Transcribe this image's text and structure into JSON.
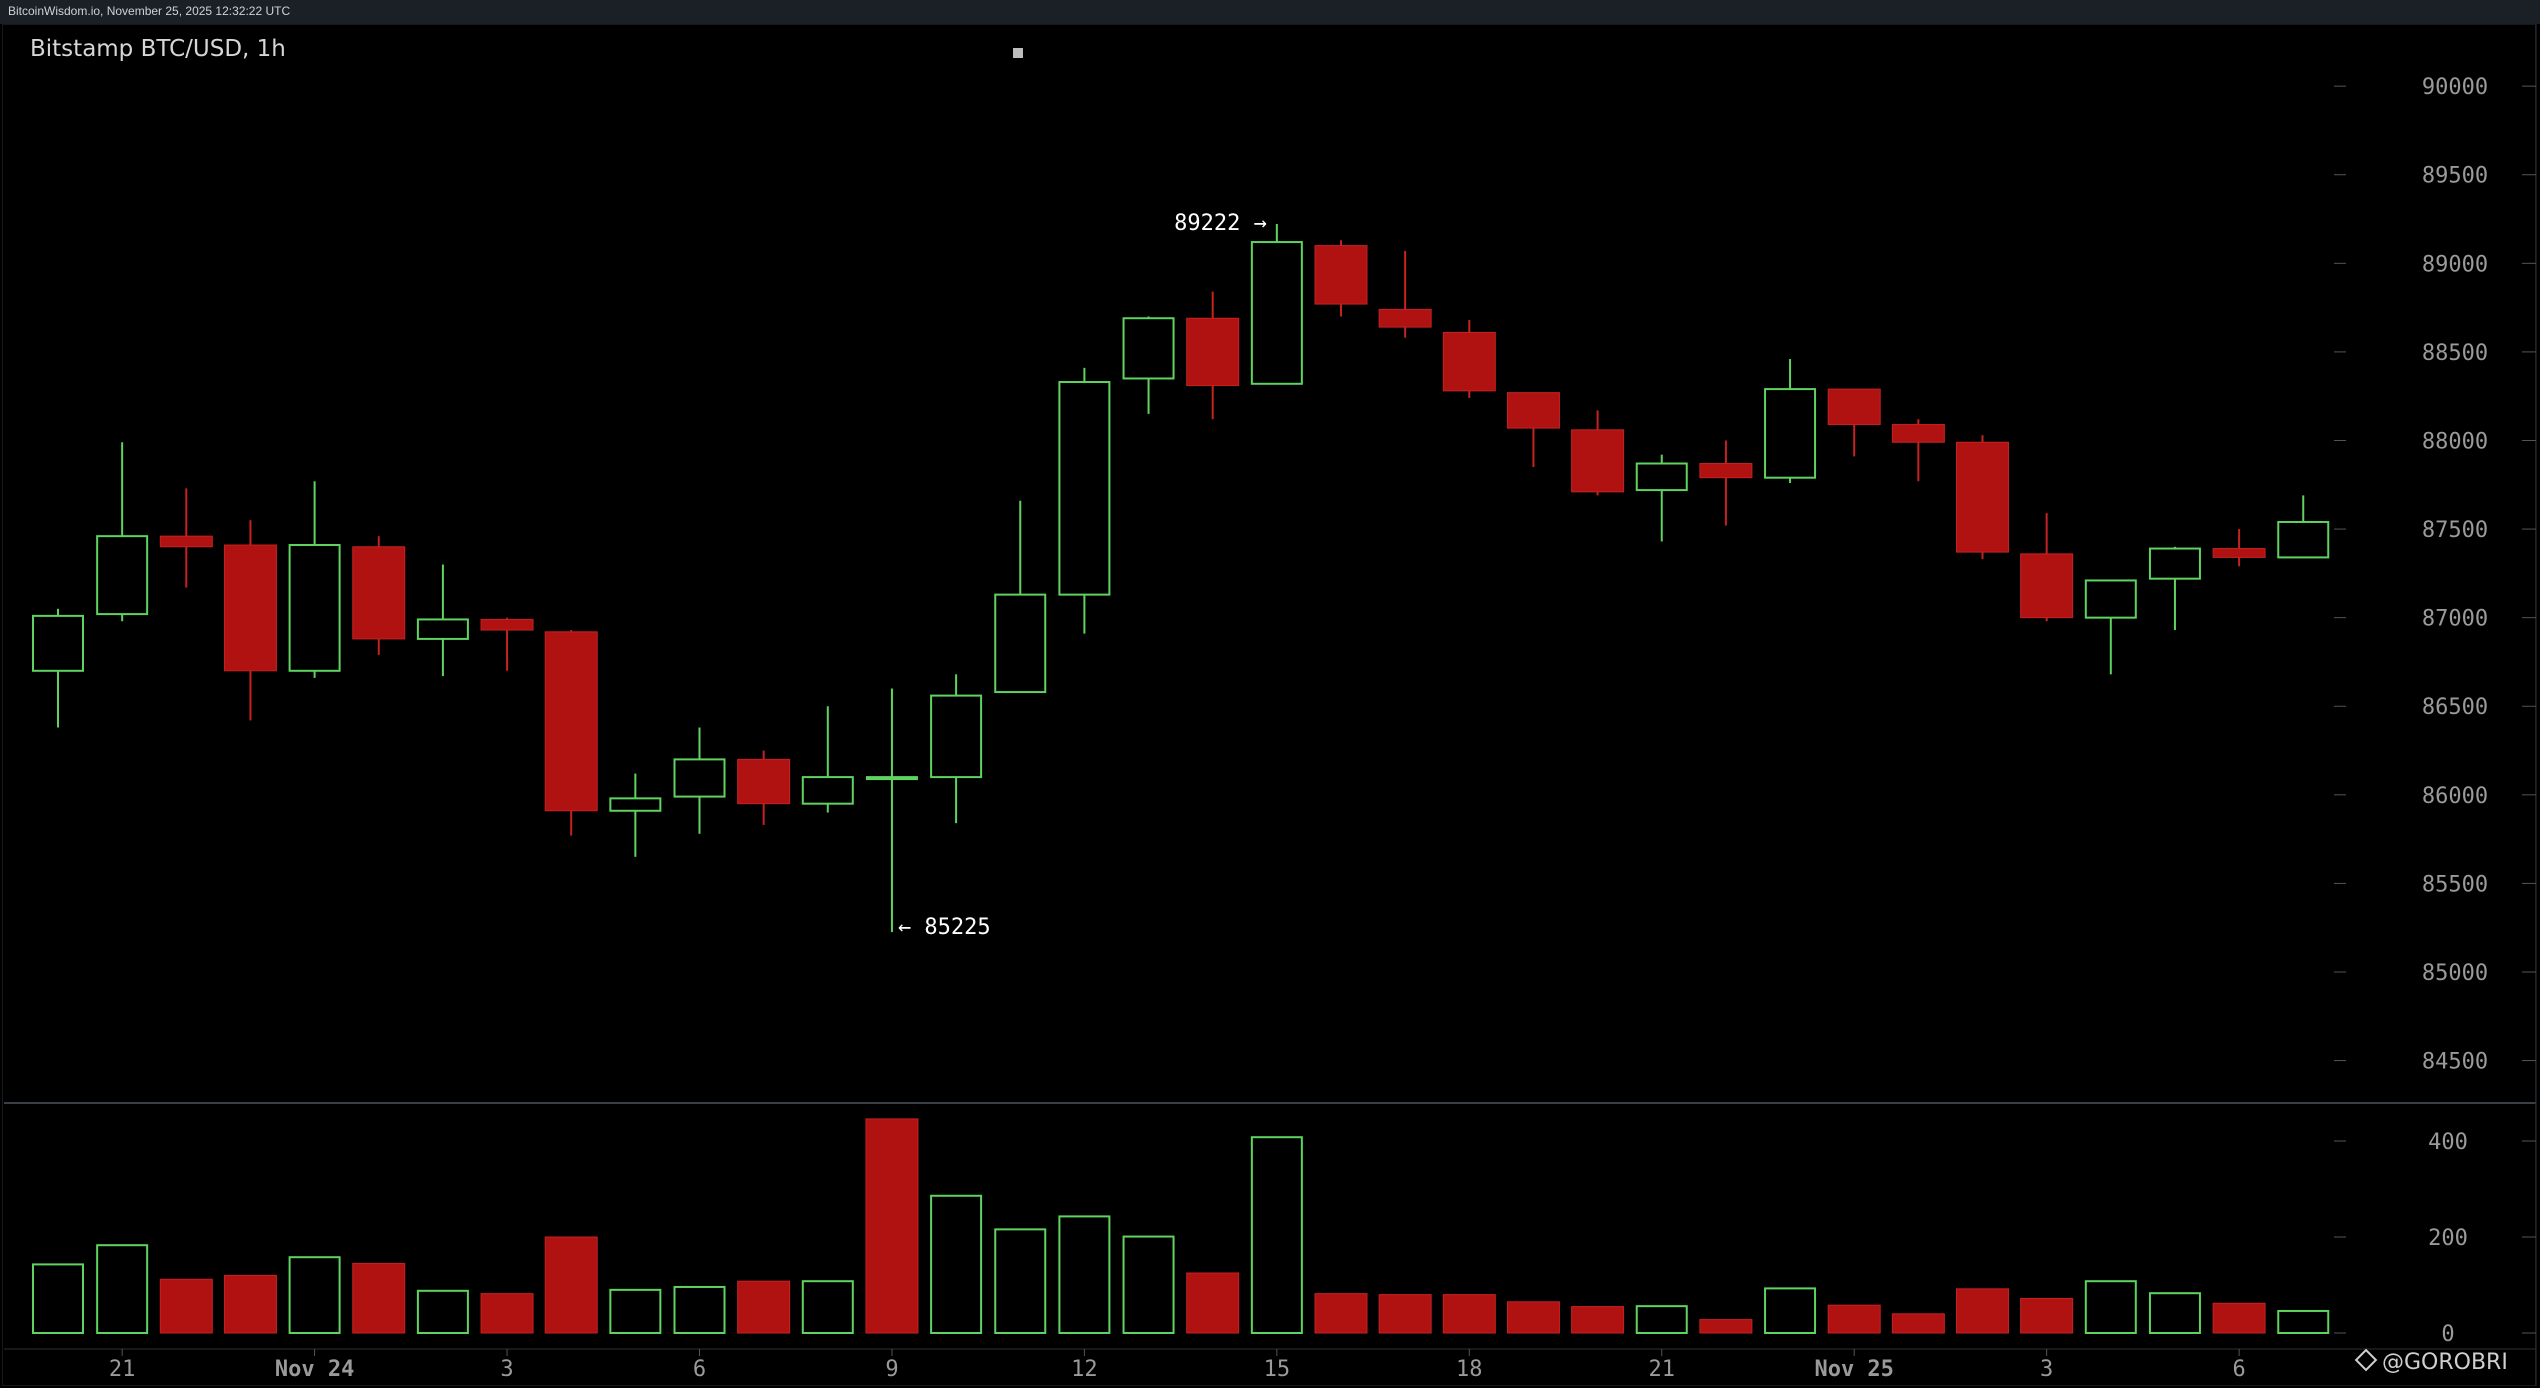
{
  "header": {
    "source_text": "BitcoinWisdom.io, November 25, 2025 12:32:22 UTC"
  },
  "chart_title": "Bitstamp BTC/USD, 1h",
  "watermark": "@GOROBRI",
  "colors": {
    "background": "#000000",
    "up": "#5fd35f",
    "down": "#b01212",
    "axis_text": "#9a9a9a",
    "annotation_text": "#ffffff"
  },
  "chart_data": [
    {
      "type": "candlestick",
      "title": "Bitstamp BTC/USD, 1h",
      "ylim": [
        84300,
        90300
      ],
      "y_ticks": [
        90000,
        89500,
        89000,
        88500,
        88000,
        87500,
        87000,
        86500,
        86000,
        85500,
        85000,
        84500
      ],
      "x_ticks": [
        {
          "index": 1,
          "label": "21"
        },
        {
          "index": 4,
          "label": "Nov 24"
        },
        {
          "index": 7,
          "label": "3"
        },
        {
          "index": 10,
          "label": "6"
        },
        {
          "index": 13,
          "label": "9"
        },
        {
          "index": 16,
          "label": "12"
        },
        {
          "index": 19,
          "label": "15"
        },
        {
          "index": 22,
          "label": "18"
        },
        {
          "index": 25,
          "label": "21"
        },
        {
          "index": 28,
          "label": "Nov 25"
        },
        {
          "index": 31,
          "label": "3"
        },
        {
          "index": 34,
          "label": "6"
        }
      ],
      "candles": [
        {
          "o": 86700,
          "h": 87050,
          "l": 86380,
          "c": 87010
        },
        {
          "o": 87020,
          "h": 87990,
          "l": 86980,
          "c": 87460
        },
        {
          "o": 87460,
          "h": 87730,
          "l": 87170,
          "c": 87400
        },
        {
          "o": 87410,
          "h": 87550,
          "l": 86420,
          "c": 86700
        },
        {
          "o": 86700,
          "h": 87770,
          "l": 86660,
          "c": 87410
        },
        {
          "o": 87400,
          "h": 87460,
          "l": 86790,
          "c": 86880
        },
        {
          "o": 86880,
          "h": 87300,
          "l": 86670,
          "c": 86990
        },
        {
          "o": 86990,
          "h": 87000,
          "l": 86700,
          "c": 86930
        },
        {
          "o": 86920,
          "h": 86930,
          "l": 85770,
          "c": 85910
        },
        {
          "o": 85910,
          "h": 86120,
          "l": 85650,
          "c": 85980
        },
        {
          "o": 85990,
          "h": 86380,
          "l": 85780,
          "c": 86200
        },
        {
          "o": 86200,
          "h": 86250,
          "l": 85830,
          "c": 85950
        },
        {
          "o": 85950,
          "h": 86500,
          "l": 85900,
          "c": 86100
        },
        {
          "o": 86100,
          "h": 86600,
          "l": 85225,
          "c": 86100
        },
        {
          "o": 86100,
          "h": 86680,
          "l": 85840,
          "c": 86560
        },
        {
          "o": 86580,
          "h": 87660,
          "l": 86580,
          "c": 87130
        },
        {
          "o": 87130,
          "h": 88410,
          "l": 86910,
          "c": 88330
        },
        {
          "o": 88350,
          "h": 88700,
          "l": 88150,
          "c": 88690
        },
        {
          "o": 88690,
          "h": 88840,
          "l": 88120,
          "c": 88310
        },
        {
          "o": 88320,
          "h": 89222,
          "l": 88320,
          "c": 89120
        },
        {
          "o": 89100,
          "h": 89130,
          "l": 88700,
          "c": 88770
        },
        {
          "o": 88740,
          "h": 89070,
          "l": 88580,
          "c": 88640
        },
        {
          "o": 88610,
          "h": 88680,
          "l": 88240,
          "c": 88280
        },
        {
          "o": 88270,
          "h": 88270,
          "l": 87850,
          "c": 88070
        },
        {
          "o": 88060,
          "h": 88170,
          "l": 87690,
          "c": 87710
        },
        {
          "o": 87720,
          "h": 87920,
          "l": 87430,
          "c": 87870
        },
        {
          "o": 87870,
          "h": 88000,
          "l": 87520,
          "c": 87790
        },
        {
          "o": 87790,
          "h": 88460,
          "l": 87760,
          "c": 88290
        },
        {
          "o": 88290,
          "h": 88290,
          "l": 87910,
          "c": 88090
        },
        {
          "o": 88090,
          "h": 88120,
          "l": 87770,
          "c": 87990
        },
        {
          "o": 87990,
          "h": 88030,
          "l": 87330,
          "c": 87370
        },
        {
          "o": 87360,
          "h": 87590,
          "l": 86980,
          "c": 87000
        },
        {
          "o": 87000,
          "h": 87210,
          "l": 86680,
          "c": 87210
        },
        {
          "o": 87220,
          "h": 87400,
          "l": 86930,
          "c": 87390
        },
        {
          "o": 87390,
          "h": 87500,
          "l": 87290,
          "c": 87340
        },
        {
          "o": 87340,
          "h": 87690,
          "l": 87340,
          "c": 87540
        }
      ],
      "annotations": [
        {
          "label": "89222 →",
          "index": 19,
          "value": 89222,
          "side": "left"
        },
        {
          "label": "← 85225",
          "index": 13,
          "value": 85225,
          "side": "right"
        }
      ]
    },
    {
      "type": "bar",
      "title": "",
      "ylim": [
        0,
        450
      ],
      "y_ticks": [
        400,
        200,
        0
      ],
      "values": [
        145,
        185,
        112,
        120,
        160,
        145,
        90,
        82,
        200,
        92,
        98,
        108,
        110,
        446,
        288,
        218,
        245,
        203,
        125,
        410,
        82,
        80,
        80,
        65,
        55,
        58,
        28,
        95,
        58,
        40,
        92,
        72,
        110,
        85,
        62,
        48
      ],
      "direction": [
        "up",
        "up",
        "down",
        "down",
        "up",
        "down",
        "up",
        "down",
        "down",
        "up",
        "up",
        "down",
        "up",
        "down",
        "up",
        "up",
        "up",
        "up",
        "down",
        "up",
        "down",
        "down",
        "down",
        "down",
        "down",
        "up",
        "down",
        "up",
        "down",
        "down",
        "down",
        "down",
        "up",
        "up",
        "down",
        "up"
      ]
    }
  ]
}
